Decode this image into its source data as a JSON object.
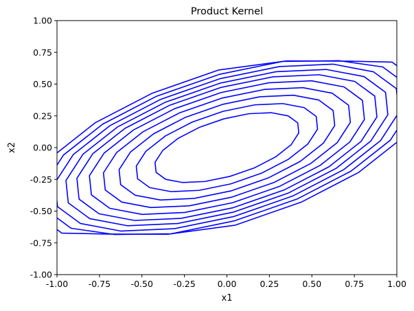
{
  "chart_data": {
    "type": "line",
    "title": "Product Kernel",
    "xlabel": "x1",
    "ylabel": "x2",
    "xlim": [
      -1.0,
      1.0
    ],
    "ylim": [
      -1.0,
      1.0
    ],
    "xticks": [
      "-1.00",
      "-0.75",
      "-0.50",
      "-0.25",
      "0.00",
      "0.25",
      "0.50",
      "0.75",
      "1.00"
    ],
    "yticks": [
      "-1.00",
      "-0.75",
      "-0.50",
      "-0.25",
      "0.00",
      "0.25",
      "0.50",
      "0.75",
      "1.00"
    ],
    "grid": false,
    "line_color": "#0000ff",
    "contour_type": "contour",
    "contours": {
      "closed_radii": [
        0.46,
        0.58,
        0.69,
        0.79,
        0.88
      ],
      "open_radii": [
        0.96,
        1.03,
        1.1,
        1.17,
        1.24
      ],
      "tilt_deg": 25,
      "aspect": 0.47
    }
  }
}
